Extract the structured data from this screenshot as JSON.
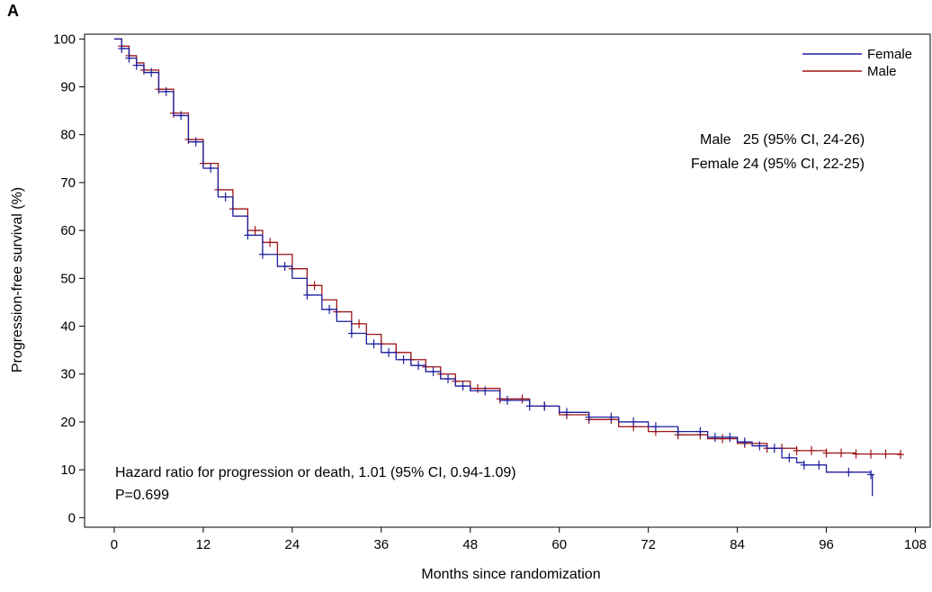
{
  "panel_label": "A",
  "annotations": {
    "median_male": "Male   25 (95% CI, 24-26)",
    "median_female": "Female 24 (95% CI, 22-25)",
    "hazard_ratio": "Hazard ratio for progression or death, 1.01 (95% CI, 0.94-1.09)",
    "p_value": "P=0.699"
  },
  "colors": {
    "female": "#1f1f9e",
    "male": "#9e1414"
  },
  "chart_data": {
    "type": "line",
    "title": "",
    "xlabel": "Months since randomization",
    "ylabel": "Progression-free survival (%)",
    "xlim": [
      -4,
      110
    ],
    "ylim": [
      -2,
      101
    ],
    "xticks": [
      0,
      12,
      24,
      36,
      48,
      60,
      72,
      84,
      96,
      108
    ],
    "yticks": [
      0,
      10,
      20,
      30,
      40,
      50,
      60,
      70,
      80,
      90,
      100
    ],
    "legend": {
      "position": "top-right",
      "entries": [
        "Female",
        "Male"
      ]
    },
    "series": [
      {
        "name": "Female",
        "color": "#1f1f9e",
        "points": [
          [
            0,
            100
          ],
          [
            1,
            98
          ],
          [
            2,
            96
          ],
          [
            3,
            94.5
          ],
          [
            4,
            93
          ],
          [
            6,
            89
          ],
          [
            8,
            84
          ],
          [
            10,
            78.5
          ],
          [
            12,
            73
          ],
          [
            14,
            67
          ],
          [
            16,
            63
          ],
          [
            18,
            59
          ],
          [
            20,
            55
          ],
          [
            22,
            52.5
          ],
          [
            24,
            50
          ],
          [
            26,
            46.5
          ],
          [
            28,
            43.5
          ],
          [
            30,
            41
          ],
          [
            32,
            38.5
          ],
          [
            34,
            36.3
          ],
          [
            36,
            34.5
          ],
          [
            38,
            33
          ],
          [
            40,
            31.8
          ],
          [
            42,
            30.5
          ],
          [
            44,
            29
          ],
          [
            46,
            27.5
          ],
          [
            48,
            26.5
          ],
          [
            52,
            24.5
          ],
          [
            56,
            23.3
          ],
          [
            60,
            22
          ],
          [
            64,
            21
          ],
          [
            68,
            20
          ],
          [
            72,
            19
          ],
          [
            76,
            18
          ],
          [
            80,
            16.8
          ],
          [
            84,
            15.8
          ],
          [
            86,
            15
          ],
          [
            88,
            14.5
          ],
          [
            90,
            12.5
          ],
          [
            92,
            11.5
          ],
          [
            93,
            11
          ],
          [
            96,
            9.5
          ],
          [
            100,
            9.5
          ],
          [
            102,
            9
          ],
          [
            102.2,
            4.5
          ]
        ],
        "censor_x": [
          1,
          2,
          3,
          5,
          7,
          9,
          11,
          13,
          15,
          18,
          20,
          23,
          26,
          29,
          32,
          35,
          37,
          39,
          41,
          43,
          45,
          47,
          50,
          53,
          56,
          58,
          61,
          64,
          67,
          70,
          73,
          76,
          79,
          81,
          83,
          85,
          87,
          89,
          91,
          93,
          95,
          99,
          102
        ]
      },
      {
        "name": "Male",
        "color": "#9e1414",
        "points": [
          [
            0,
            100
          ],
          [
            1,
            98.5
          ],
          [
            2,
            96.5
          ],
          [
            3,
            95
          ],
          [
            4,
            93.5
          ],
          [
            6,
            89.5
          ],
          [
            8,
            84.5
          ],
          [
            10,
            79
          ],
          [
            12,
            74
          ],
          [
            14,
            68.5
          ],
          [
            16,
            64.5
          ],
          [
            18,
            60
          ],
          [
            20,
            57.5
          ],
          [
            22,
            55
          ],
          [
            24,
            52
          ],
          [
            26,
            48.5
          ],
          [
            28,
            45.5
          ],
          [
            30,
            43
          ],
          [
            32,
            40.5
          ],
          [
            34,
            38.3
          ],
          [
            36,
            36.3
          ],
          [
            38,
            34.5
          ],
          [
            40,
            33
          ],
          [
            42,
            31.5
          ],
          [
            44,
            30
          ],
          [
            46,
            28.5
          ],
          [
            48,
            27
          ],
          [
            52,
            24.8
          ],
          [
            56,
            23.3
          ],
          [
            60,
            21.5
          ],
          [
            64,
            20.5
          ],
          [
            68,
            19
          ],
          [
            72,
            18
          ],
          [
            76,
            17.3
          ],
          [
            80,
            16.5
          ],
          [
            84,
            15.5
          ],
          [
            88,
            14.5
          ],
          [
            92,
            14
          ],
          [
            96,
            13.5
          ],
          [
            100,
            13.3
          ],
          [
            106,
            13.2
          ]
        ],
        "censor_x": [
          1,
          2,
          4,
          6,
          8,
          10,
          12,
          14,
          16,
          19,
          21,
          24,
          27,
          30,
          33,
          36,
          38,
          40,
          42,
          44,
          46,
          49,
          52,
          55,
          58,
          61,
          64,
          67,
          70,
          73,
          76,
          79,
          82,
          85,
          88,
          90,
          92,
          94,
          96,
          98,
          100,
          102,
          104,
          106
        ]
      }
    ]
  }
}
